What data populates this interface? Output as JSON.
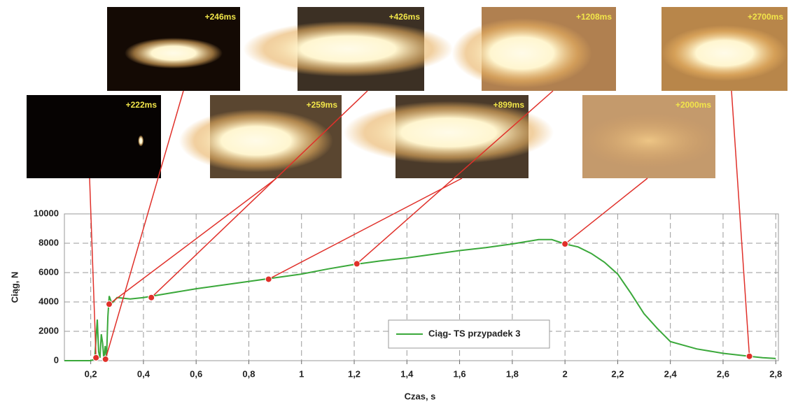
{
  "chart_data": {
    "type": "line",
    "title_y": "Ciąg, N",
    "title_x": "Czas, s",
    "xlim": [
      0.1,
      2.81
    ],
    "ylim": [
      0,
      10000
    ],
    "xticks": [
      {
        "value": 0.2,
        "label": "0,2"
      },
      {
        "value": 0.4,
        "label": "0,4"
      },
      {
        "value": 0.6,
        "label": "0,6"
      },
      {
        "value": 0.8,
        "label": "0,8"
      },
      1,
      {
        "value": 1.2,
        "label": "1,2"
      },
      {
        "value": 1.4,
        "label": "1,4"
      },
      {
        "value": 1.6,
        "label": "1,6"
      },
      {
        "value": 1.8,
        "label": "1,8"
      },
      2,
      {
        "value": 2.2,
        "label": "2,2"
      },
      {
        "value": 2.4,
        "label": "2,4"
      },
      {
        "value": 2.6,
        "label": "2,6"
      },
      {
        "value": 2.8,
        "label": "2,8"
      }
    ],
    "yticks": [
      0,
      2000,
      4000,
      6000,
      8000,
      10000
    ],
    "grid": true,
    "series": [
      {
        "name": "Ciąg- TS przypadek 3",
        "color": "#3aa83a",
        "x": [
          0.1,
          0.2,
          0.215,
          0.22,
          0.225,
          0.23,
          0.235,
          0.24,
          0.245,
          0.25,
          0.255,
          0.26,
          0.265,
          0.27,
          0.28,
          0.3,
          0.35,
          0.4,
          0.5,
          0.6,
          0.7,
          0.8,
          0.9,
          1.0,
          1.1,
          1.2,
          1.3,
          1.4,
          1.5,
          1.6,
          1.7,
          1.8,
          1.85,
          1.9,
          1.95,
          2.0,
          2.05,
          2.1,
          2.15,
          2.2,
          2.25,
          2.3,
          2.35,
          2.4,
          2.5,
          2.6,
          2.7,
          2.75,
          2.8
        ],
        "y": [
          0,
          0,
          100,
          1500,
          2800,
          600,
          200,
          1800,
          1200,
          0,
          1000,
          200,
          3000,
          4400,
          3900,
          4300,
          4200,
          4300,
          4600,
          4900,
          5150,
          5400,
          5650,
          5900,
          6250,
          6550,
          6800,
          7000,
          7250,
          7500,
          7700,
          7950,
          8100,
          8250,
          8250,
          7950,
          7750,
          7300,
          6700,
          5900,
          4600,
          3200,
          2200,
          1300,
          800,
          500,
          300,
          200,
          150
        ]
      }
    ],
    "markers": {
      "color": "#e0302a",
      "x": [
        0.22,
        0.256,
        0.27,
        0.43,
        0.875,
        1.21,
        2.0,
        2.7
      ],
      "y": [
        200,
        100,
        3850,
        4300,
        5550,
        6600,
        7950,
        300
      ]
    },
    "photos": [
      {
        "label": "+222ms"
      },
      {
        "label": "+246ms"
      },
      {
        "label": "+259ms"
      },
      {
        "label": "+426ms"
      },
      {
        "label": "+899ms"
      },
      {
        "label": "+1208ms"
      },
      {
        "label": "+2000ms"
      },
      {
        "label": "+2700ms"
      }
    ]
  }
}
